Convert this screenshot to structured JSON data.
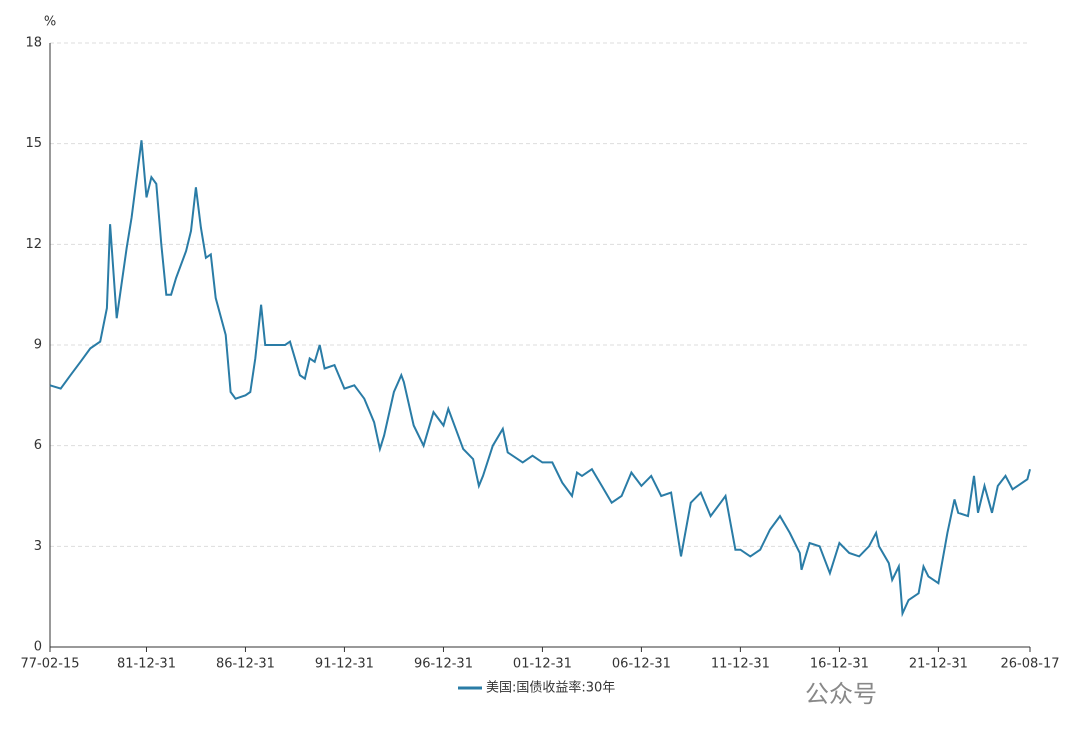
{
  "chart_data": {
    "type": "line",
    "y_unit": "%",
    "x": [
      "77-02-15",
      "77-08-31",
      "78-02-28",
      "78-08-31",
      "79-02-28",
      "79-08-31",
      "79-12-31",
      "80-02-29",
      "80-06-30",
      "80-12-31",
      "81-03-31",
      "81-09-30",
      "81-12-31",
      "82-03-31",
      "82-06-30",
      "82-09-30",
      "82-12-31",
      "83-03-31",
      "83-06-30",
      "83-12-31",
      "84-03-31",
      "84-06-30",
      "84-09-30",
      "84-12-31",
      "85-03-31",
      "85-06-30",
      "85-12-31",
      "86-03-31",
      "86-06-30",
      "86-12-31",
      "87-03-31",
      "87-06-30",
      "87-10-15",
      "87-12-31",
      "88-06-30",
      "88-12-31",
      "89-03-31",
      "89-09-30",
      "89-12-31",
      "90-03-31",
      "90-06-30",
      "90-09-30",
      "90-12-31",
      "91-06-30",
      "91-12-31",
      "92-06-30",
      "92-12-31",
      "93-06-30",
      "93-10-15",
      "93-12-31",
      "94-06-30",
      "94-11-15",
      "94-12-31",
      "95-06-30",
      "95-12-31",
      "96-06-30",
      "96-12-31",
      "97-03-31",
      "97-12-31",
      "98-06-30",
      "98-10-15",
      "98-12-31",
      "99-06-30",
      "99-12-31",
      "00-03-31",
      "00-12-31",
      "01-06-30",
      "01-12-31",
      "02-06-30",
      "02-12-31",
      "03-06-30",
      "03-09-30",
      "03-12-31",
      "04-06-30",
      "04-12-31",
      "05-06-30",
      "05-12-31",
      "06-06-30",
      "06-12-31",
      "07-06-30",
      "07-12-31",
      "08-06-30",
      "08-12-31",
      "09-06-30",
      "09-12-31",
      "10-06-30",
      "10-12-31",
      "11-03-31",
      "11-09-30",
      "11-12-31",
      "12-06-30",
      "12-12-31",
      "13-06-30",
      "13-12-31",
      "14-06-30",
      "14-12-31",
      "15-01-31",
      "15-06-30",
      "15-12-31",
      "16-07-08",
      "16-12-31",
      "17-06-30",
      "17-12-31",
      "18-06-30",
      "18-11-08",
      "18-12-31",
      "19-06-30",
      "19-08-31",
      "19-12-31",
      "20-03-09",
      "20-06-30",
      "20-12-31",
      "21-03-31",
      "21-06-30",
      "21-12-31",
      "22-06-15",
      "22-10-24",
      "22-12-31",
      "23-06-30",
      "23-10-19",
      "23-12-31",
      "24-04-30",
      "24-09-15",
      "24-12-31",
      "25-05-22",
      "25-09-30",
      "25-12-31",
      "26-06-30",
      "26-08-17"
    ],
    "series": [
      {
        "name": "美国:国债收益率:30年",
        "color": "#2a7ca6",
        "values": [
          7.8,
          7.7,
          8.1,
          8.5,
          8.9,
          9.1,
          10.1,
          12.6,
          9.8,
          11.9,
          12.8,
          15.1,
          13.4,
          14.0,
          13.8,
          12.0,
          10.5,
          10.5,
          11.0,
          11.8,
          12.4,
          13.7,
          12.5,
          11.6,
          11.7,
          10.4,
          9.3,
          7.6,
          7.4,
          7.5,
          7.6,
          8.6,
          10.2,
          9.0,
          9.0,
          9.0,
          9.1,
          8.1,
          8.0,
          8.6,
          8.5,
          9.0,
          8.3,
          8.4,
          7.7,
          7.8,
          7.4,
          6.7,
          5.9,
          6.3,
          7.6,
          8.1,
          7.9,
          6.6,
          6.0,
          7.0,
          6.6,
          7.1,
          5.9,
          5.6,
          4.8,
          5.1,
          6.0,
          6.5,
          5.8,
          5.5,
          5.7,
          5.5,
          5.5,
          4.9,
          4.5,
          5.2,
          5.1,
          5.3,
          4.8,
          4.3,
          4.5,
          5.2,
          4.8,
          5.1,
          4.5,
          4.6,
          2.7,
          4.3,
          4.6,
          3.9,
          4.3,
          4.5,
          2.9,
          2.9,
          2.7,
          2.9,
          3.5,
          3.9,
          3.4,
          2.8,
          2.3,
          3.1,
          3.0,
          2.2,
          3.1,
          2.8,
          2.7,
          3.0,
          3.4,
          3.0,
          2.5,
          2.0,
          2.4,
          1.0,
          1.4,
          1.6,
          2.4,
          2.1,
          1.9,
          3.4,
          4.4,
          4.0,
          3.9,
          5.1,
          4.0,
          4.8,
          4.0,
          4.8,
          5.1,
          4.7,
          4.8,
          5.0,
          5.3
        ]
      }
    ],
    "xlim": [
      "77-02-15",
      "26-08-17"
    ],
    "xticks": [
      "77-02-15",
      "81-12-31",
      "86-12-31",
      "91-12-31",
      "96-12-31",
      "01-12-31",
      "06-12-31",
      "11-12-31",
      "16-12-31",
      "21-12-31",
      "26-08-17"
    ],
    "ylim": [
      0,
      18
    ],
    "yticks": [
      0,
      3,
      6,
      9,
      12,
      15,
      18
    ],
    "grid": true,
    "legend": "bottom"
  },
  "watermark": "公众号"
}
